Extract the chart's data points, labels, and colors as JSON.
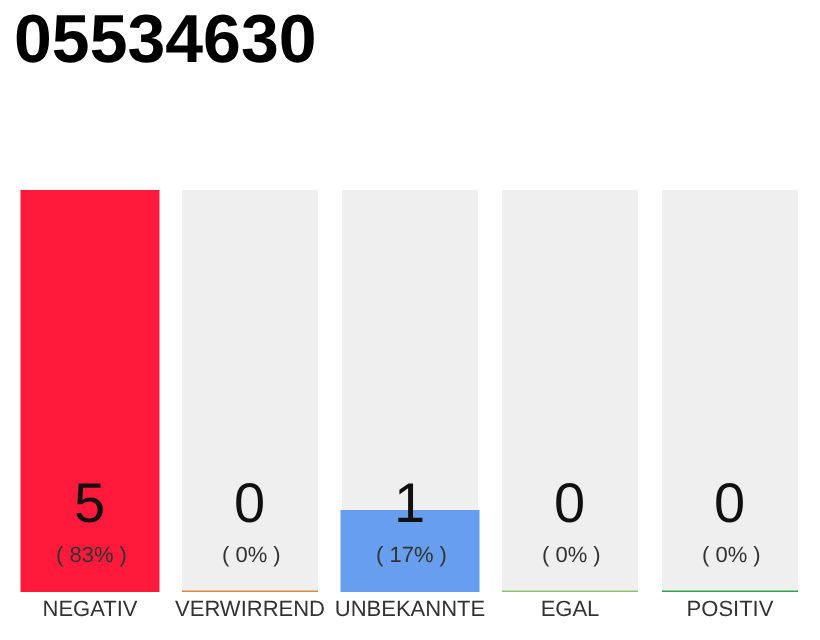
{
  "chart_data": {
    "type": "bar",
    "title": "05534630",
    "categories": [
      "NEGATIV",
      "VERWIRREND",
      "UNBEKANNTE",
      "EGAL",
      "POSITIV"
    ],
    "values": [
      5,
      0,
      1,
      0,
      0
    ],
    "colors": [
      "#ff1a3c",
      "#e08a3c",
      "#679eee",
      "#8cc46e",
      "#2aa84a"
    ],
    "ylim": [
      0,
      5
    ],
    "data_labels": true,
    "tick_labels": "x",
    "grid": false,
    "legend": false,
    "annotations": [
      "( 83% )",
      "( 0% )",
      "( 17% )",
      "( 0% )",
      "( 0% )"
    ]
  }
}
